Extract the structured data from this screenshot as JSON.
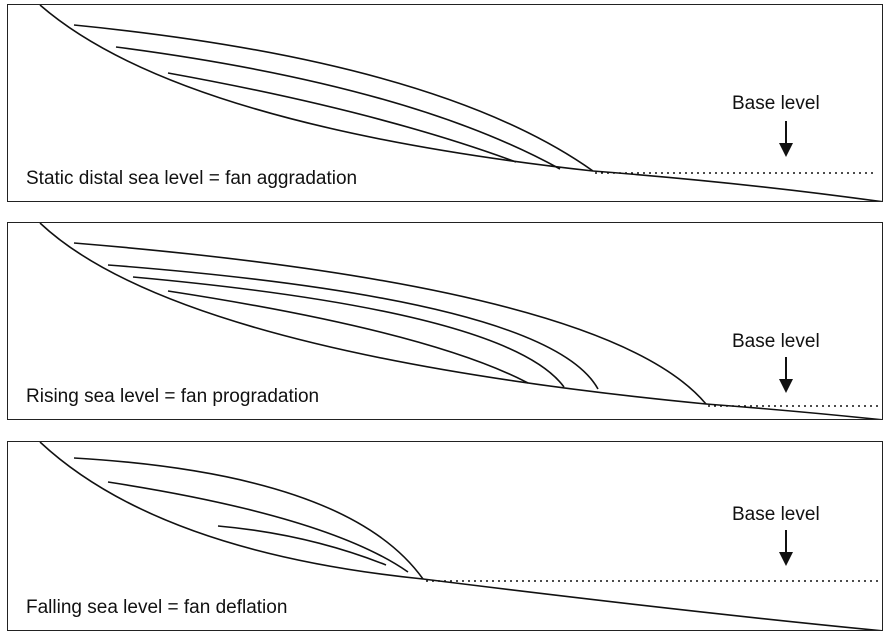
{
  "panels": [
    {
      "caption": "Static distal sea level = fan aggradation",
      "base_level": "Base level"
    },
    {
      "caption": "Rising sea level = fan progradation",
      "base_level": "Base level"
    },
    {
      "caption": "Falling sea level = fan deflation",
      "base_level": "Base level"
    }
  ],
  "colors": {
    "line": "#111111",
    "background": "#ffffff"
  },
  "icons": {
    "base_level_marker": "down-arrow-icon"
  }
}
